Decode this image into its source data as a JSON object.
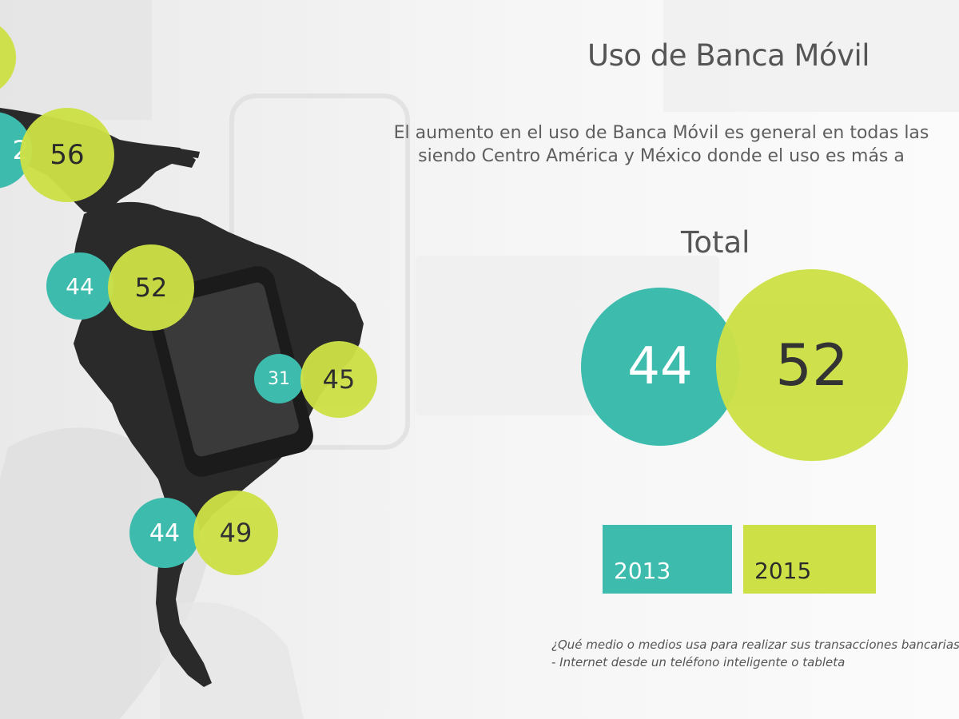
{
  "title": "Uso de Banca Móvil",
  "description": {
    "line1": "El aumento en el uso de Banca Móvil es general en todas las",
    "line2": "siendo Centro América y México donde el uso es más a"
  },
  "total": {
    "label": "Total",
    "value_2013": "44",
    "value_2015": "52"
  },
  "regions": [
    {
      "value_2013": "",
      "value_2015": ""
    },
    {
      "value_2013": "2",
      "value_2015": "56"
    },
    {
      "value_2013": "44",
      "value_2015": "52"
    },
    {
      "value_2013": "31",
      "value_2015": "45"
    },
    {
      "value_2013": "44",
      "value_2015": "49"
    }
  ],
  "legend": {
    "year_2013": "2013",
    "year_2015": "2015"
  },
  "footnote": {
    "line1": "¿Qué medio o medios usa  para realizar sus transacciones bancarias o pagos en",
    "line2": "- Internet desde un teléfono inteligente o tableta"
  },
  "colors": {
    "teal_2013": "#3dbcae",
    "lime_2015": "#cde147",
    "map": "#2a2a2a"
  }
}
